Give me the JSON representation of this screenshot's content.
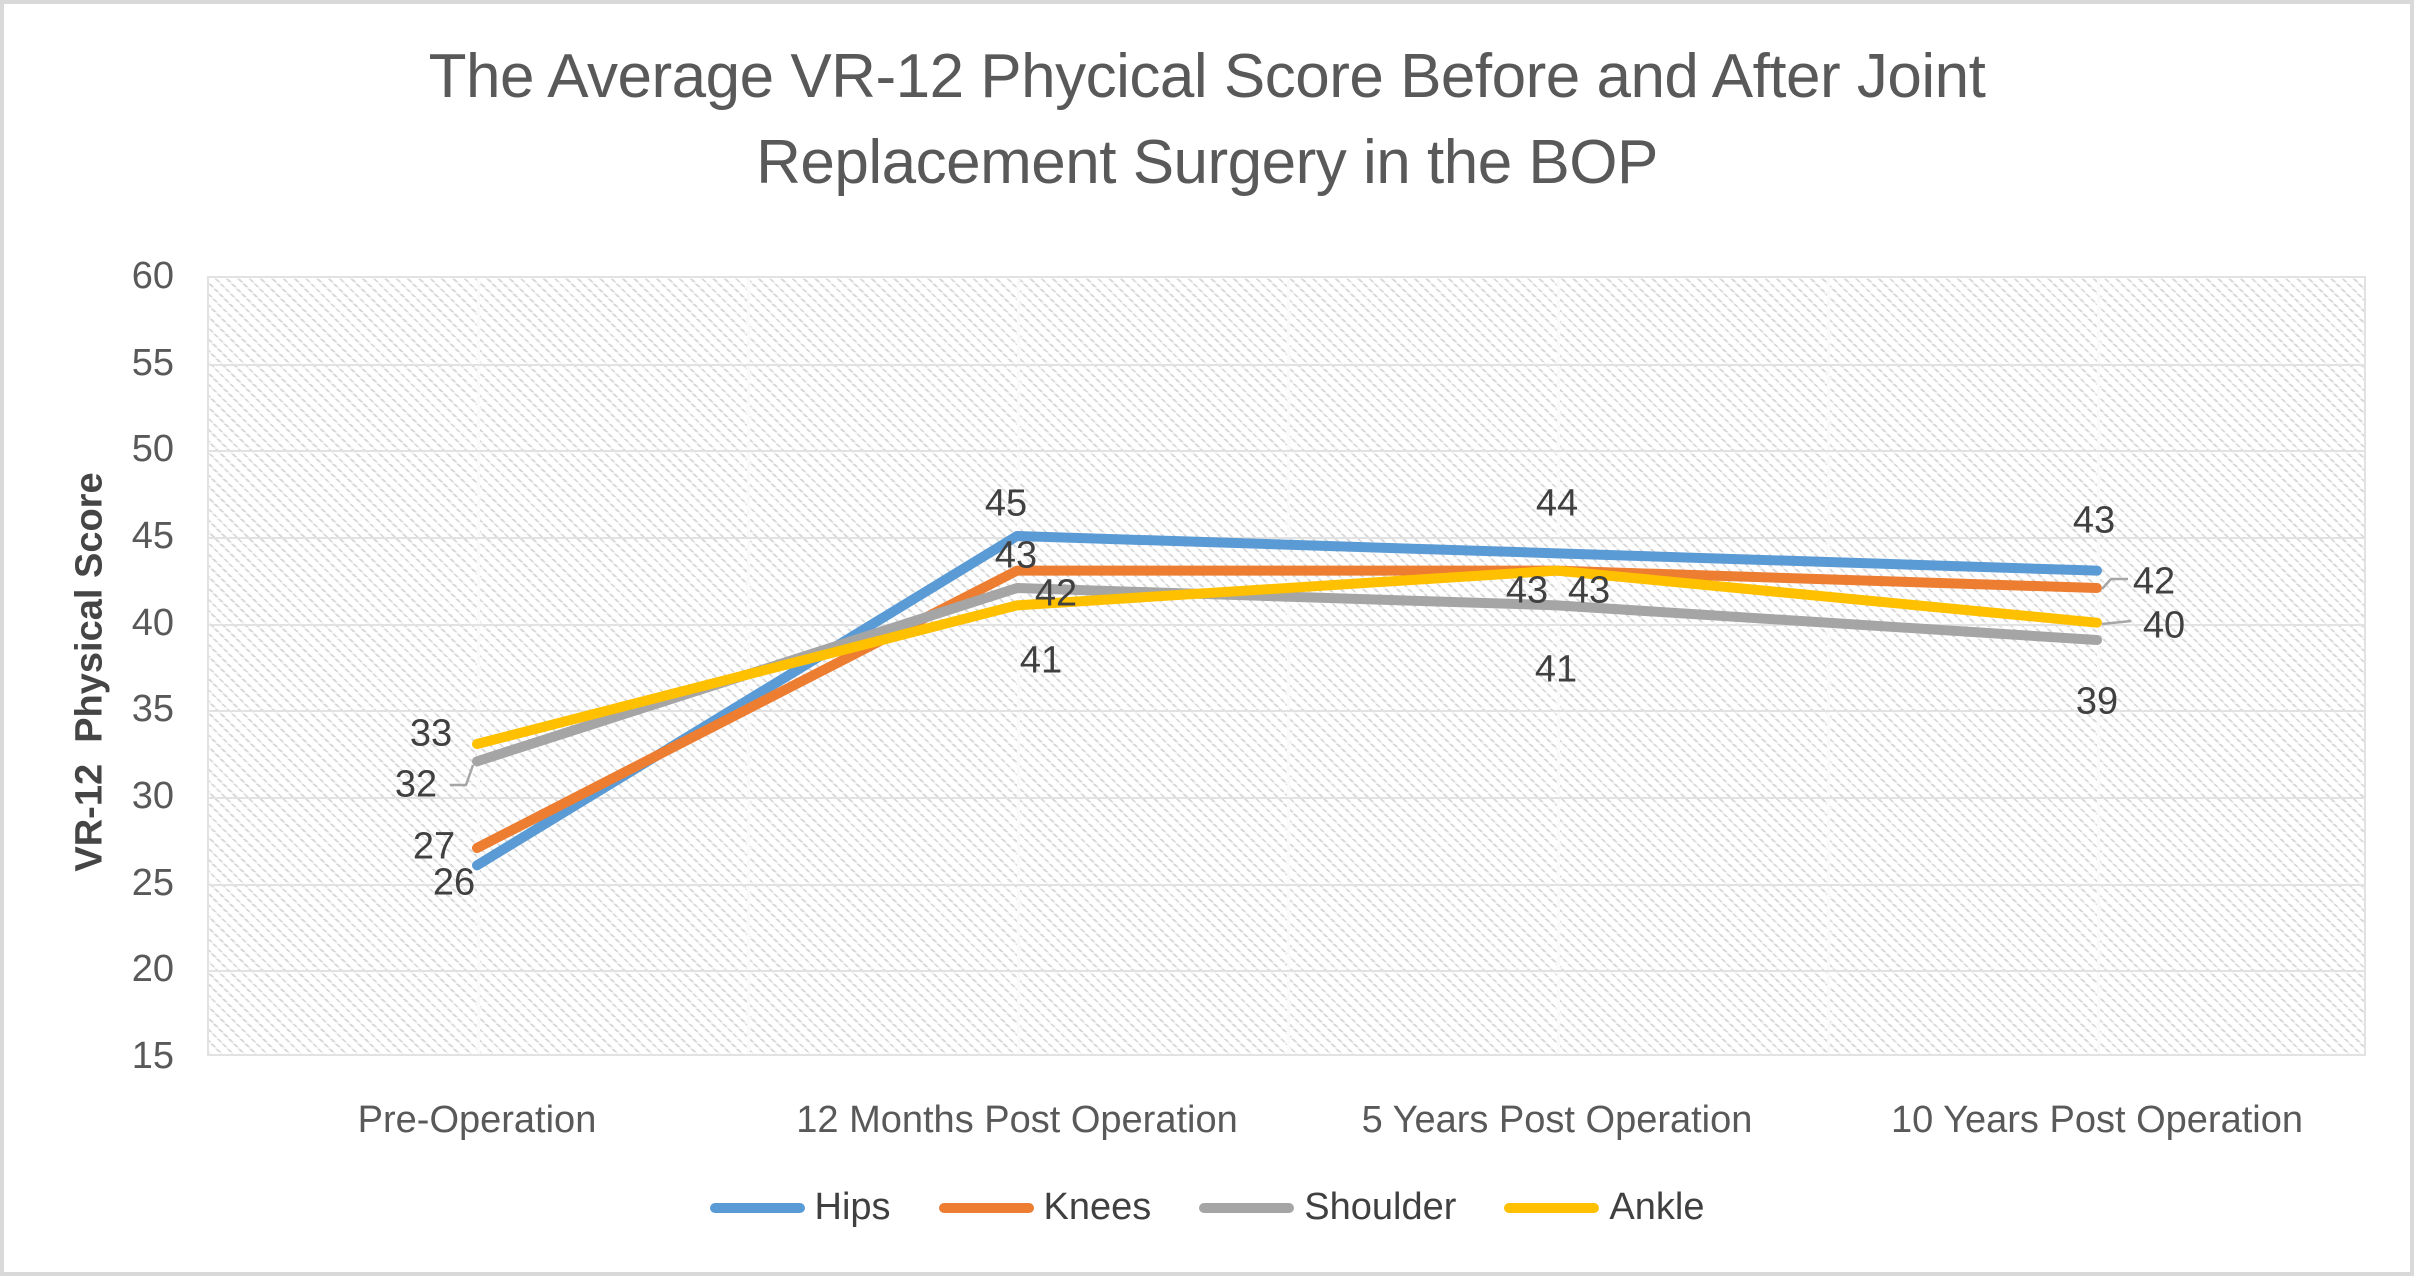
{
  "title_lines": [
    "The Average VR-12 Phycical Score Before and After Joint",
    "Replacement Surgery in the BOP"
  ],
  "chart_data": {
    "type": "line",
    "title": "The Average VR-12 Phycical Score Before and After Joint Replacement Surgery in the BOP",
    "xlabel": "",
    "ylabel": "VR-12  Physical Score",
    "categories": [
      "Pre-Operation",
      "12 Months Post Operation",
      "5 Years Post Operation",
      "10 Years Post Operation"
    ],
    "series": [
      {
        "name": "Hips",
        "color": "#5B9BD5",
        "values": [
          26,
          45,
          44,
          43
        ]
      },
      {
        "name": "Knees",
        "color": "#ED7D31",
        "values": [
          27,
          43,
          43,
          42
        ]
      },
      {
        "name": "Shoulder",
        "color": "#A5A5A5",
        "values": [
          32,
          42,
          41,
          39
        ]
      },
      {
        "name": "Ankle",
        "color": "#FFC000",
        "values": [
          33,
          41,
          43,
          40
        ]
      }
    ],
    "y_ticks": [
      60,
      55,
      50,
      45,
      40,
      35,
      30,
      25,
      20,
      15
    ],
    "ylim": [
      15,
      60
    ],
    "data_labels": true,
    "grid": true,
    "plot_area_fill": "diagonal-hatch",
    "legend_position": "bottom",
    "title_color": "#595959",
    "axis_label_color": "#595959",
    "data_label_color": "#404040",
    "leader_line_color": "#A6A6A6"
  }
}
